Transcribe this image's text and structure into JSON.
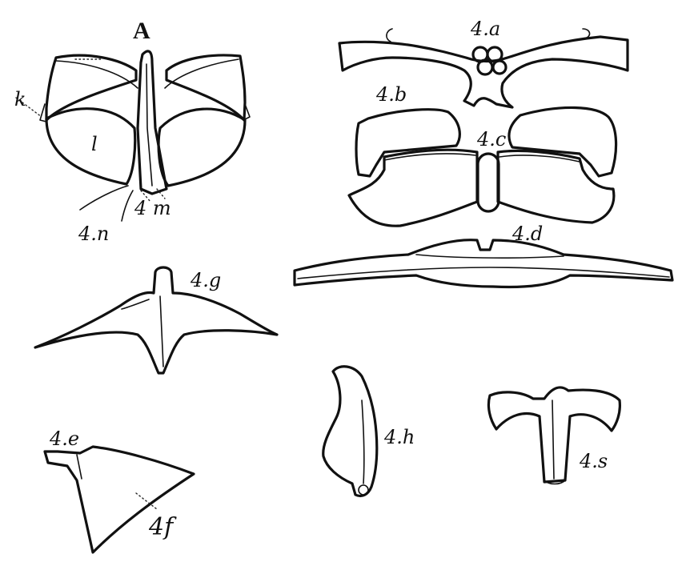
{
  "labels": {
    "A": "A",
    "k": "k",
    "l": "l",
    "four_m": "4 m",
    "four_n": "4.n",
    "four_a": "4.a",
    "four_b": "4.b",
    "four_c": "4.c",
    "four_d": "4.d",
    "four_g": "4.g",
    "four_e": "4.e",
    "four_f": "4f",
    "four_h": "4.h",
    "four_s": "4.s"
  }
}
